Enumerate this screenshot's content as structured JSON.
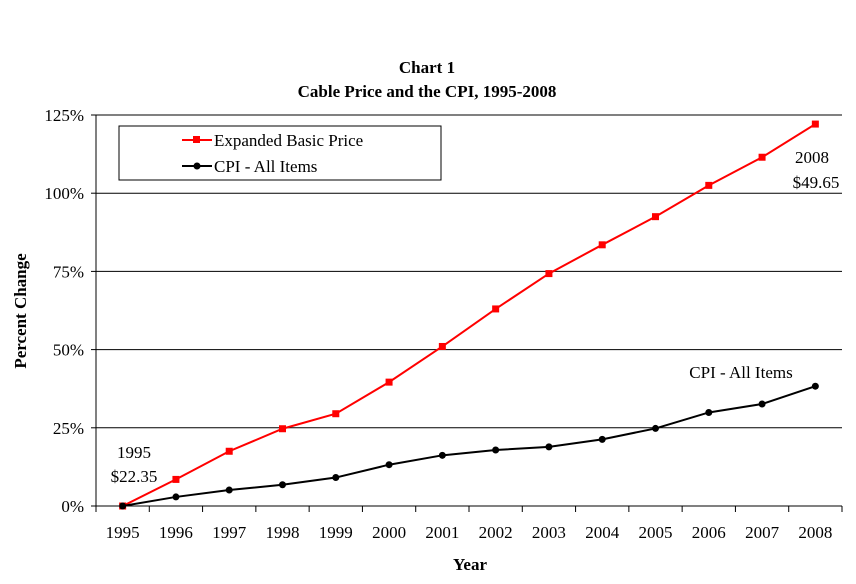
{
  "chart_data": {
    "type": "line",
    "title": "Chart 1",
    "subtitle": "Cable Price and the CPI, 1995-2008",
    "xlabel": "Year",
    "ylabel": "Percent Change",
    "categories": [
      "1995",
      "1996",
      "1997",
      "1998",
      "1999",
      "2000",
      "2001",
      "2002",
      "2003",
      "2004",
      "2005",
      "2006",
      "2007",
      "2008"
    ],
    "ylim": [
      0,
      125
    ],
    "y_ticks": [
      0,
      25,
      50,
      75,
      100,
      125
    ],
    "y_tick_labels": [
      "0%",
      "25%",
      "50%",
      "75%",
      "100%",
      "125%"
    ],
    "grid": "horizontal",
    "legend_placement": "top-left",
    "series": [
      {
        "name": "Expanded Basic Price",
        "color": "#ff0000",
        "marker": "square",
        "values": [
          0,
          8.5,
          17.5,
          24.7,
          29.5,
          39.6,
          51,
          63,
          74.3,
          83.5,
          92.5,
          102.5,
          111.5,
          122.1
        ]
      },
      {
        "name": "CPI - All Items",
        "color": "#000000",
        "marker": "circle",
        "values": [
          0,
          2.9,
          5.1,
          6.8,
          9.1,
          13.2,
          16.2,
          17.9,
          18.9,
          21.3,
          24.8,
          29.9,
          32.6,
          38.3
        ]
      }
    ],
    "annotations": {
      "start_year": "1995",
      "start_price": "$22.35",
      "end_year": "2008",
      "end_price": "$49.65",
      "cpi_label": "CPI - All Items"
    }
  }
}
